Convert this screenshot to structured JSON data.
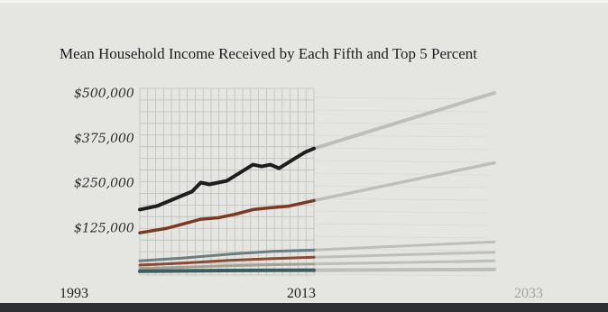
{
  "chart_data": {
    "type": "line",
    "title": "Mean Household Income Received by Each Fifth and Top 5 Percent",
    "y_tick_labels": [
      "$500,000",
      "$375,000",
      "$250,000",
      "$125,000"
    ],
    "y_tick_values": [
      500000,
      375000,
      250000,
      125000
    ],
    "x_tick_labels": [
      "1993",
      "2013",
      "2033"
    ],
    "x_tick_values": [
      1993,
      2013,
      2033
    ],
    "xlim": [
      1993,
      2033
    ],
    "ylim": [
      0,
      500000
    ],
    "grid": true,
    "series": [
      {
        "color": "#1e1e1e",
        "x": [
          1993,
          1995,
          1997,
          1999,
          2000,
          2001,
          2003,
          2005,
          2006,
          2007,
          2008,
          2009,
          2011,
          2012,
          2013,
          2033
        ],
        "values": [
          175000,
          185000,
          205000,
          225000,
          250000,
          245000,
          255000,
          285000,
          300000,
          295000,
          300000,
          290000,
          320000,
          335000,
          345000,
          500000
        ]
      },
      {
        "color": "#7a3a22",
        "x": [
          1993,
          1996,
          1998,
          2000,
          2002,
          2004,
          2006,
          2008,
          2010,
          2013,
          2033
        ],
        "values": [
          110000,
          122000,
          135000,
          148000,
          152000,
          162000,
          175000,
          180000,
          184000,
          200000,
          305000
        ]
      },
      {
        "color": "#6e7d80",
        "x": [
          1993,
          1998,
          2003,
          2008,
          2013,
          2033
        ],
        "values": [
          32000,
          40000,
          50000,
          58000,
          62000,
          85000
        ]
      },
      {
        "color": "#8a4b34",
        "x": [
          1993,
          1998,
          2003,
          2008,
          2013,
          2033
        ],
        "values": [
          20000,
          26000,
          33000,
          38000,
          42000,
          56000
        ]
      },
      {
        "color": "#a3a09a",
        "x": [
          1993,
          1998,
          2003,
          2008,
          2013,
          2033
        ],
        "values": [
          11000,
          14000,
          18000,
          21000,
          23000,
          32000
        ]
      },
      {
        "color": "#3c5c5e",
        "x": [
          1993,
          1998,
          2003,
          2008,
          2013,
          2033
        ],
        "values": [
          3000,
          4000,
          5000,
          5500,
          6000,
          8000
        ]
      }
    ]
  }
}
